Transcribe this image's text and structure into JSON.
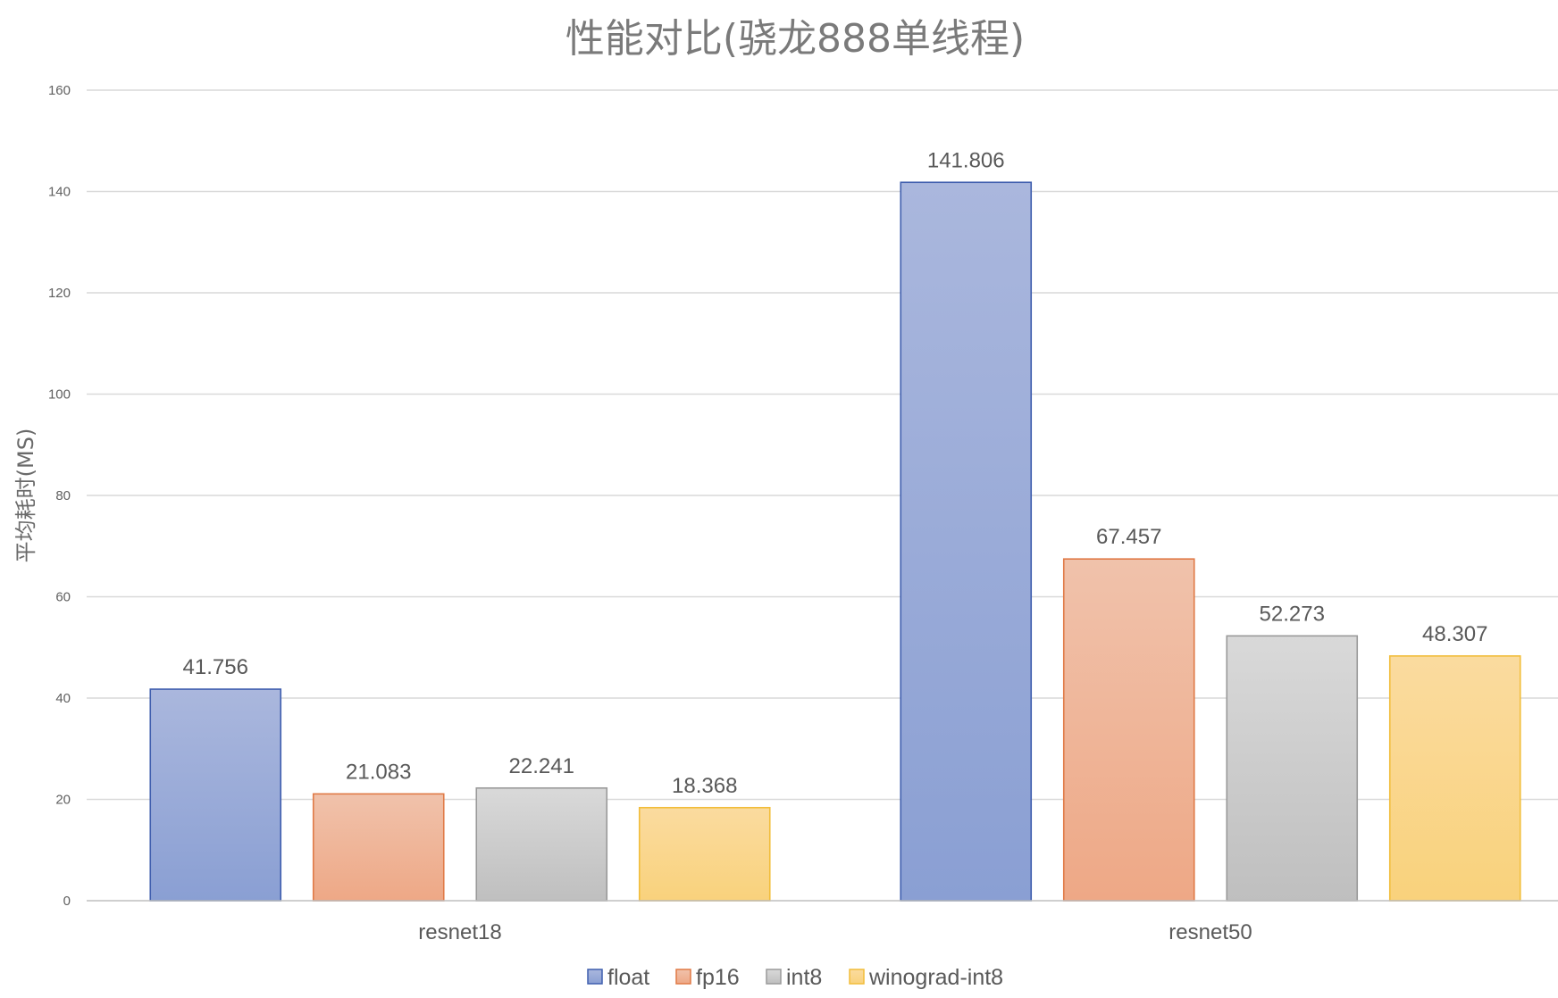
{
  "chart_data": {
    "type": "bar",
    "title": "性能对比(骁龙888单线程)",
    "ylabel": "平均耗时(MS)",
    "xlabel": "",
    "categories": [
      "resnet18",
      "resnet50"
    ],
    "ylim": [
      0,
      160
    ],
    "yticks": [
      0,
      20,
      40,
      60,
      80,
      100,
      120,
      140,
      160
    ],
    "grid": true,
    "legend_position": "bottom",
    "data_labels": true,
    "series": [
      {
        "name": "float",
        "values": [
          41.756,
          141.806
        ],
        "labels": [
          "41.756",
          "141.806"
        ],
        "color_top": "#aab7dd",
        "color_bottom": "#8a9fd3",
        "border": "#3f5eae"
      },
      {
        "name": "fp16",
        "values": [
          21.083,
          67.457
        ],
        "labels": [
          "21.083",
          "67.457"
        ],
        "color_top": "#f0c2ab",
        "color_bottom": "#eea886",
        "border": "#e07a46"
      },
      {
        "name": "int8",
        "values": [
          22.241,
          52.273
        ],
        "labels": [
          "22.241",
          "52.273"
        ],
        "color_top": "#d9d9d9",
        "color_bottom": "#bfbfbf",
        "border": "#9a9a9a"
      },
      {
        "name": "winograd-int8",
        "values": [
          18.368,
          48.307
        ],
        "labels": [
          "18.368",
          "48.307"
        ],
        "color_top": "#fadb9f",
        "color_bottom": "#f9d27c",
        "border": "#f2bd3a"
      }
    ]
  }
}
